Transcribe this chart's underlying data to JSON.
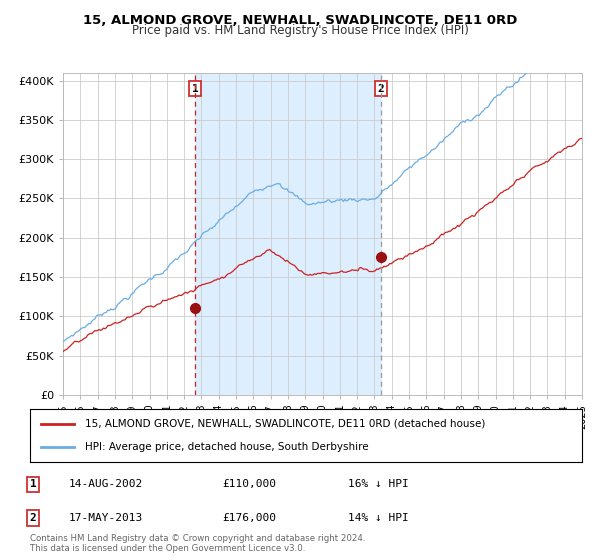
{
  "title": "15, ALMOND GROVE, NEWHALL, SWADLINCOTE, DE11 0RD",
  "subtitle": "Price paid vs. HM Land Registry's House Price Index (HPI)",
  "legend_line1": "15, ALMOND GROVE, NEWHALL, SWADLINCOTE, DE11 0RD (detached house)",
  "legend_line2": "HPI: Average price, detached house, South Derbyshire",
  "transaction1_date": "14-AUG-2002",
  "transaction1_price": "£110,000",
  "transaction1_hpi": "16% ↓ HPI",
  "transaction2_date": "17-MAY-2013",
  "transaction2_price": "£176,000",
  "transaction2_hpi": "14% ↓ HPI",
  "footer": "Contains HM Land Registry data © Crown copyright and database right 2024.\nThis data is licensed under the Open Government Licence v3.0.",
  "hpi_color": "#6aade4",
  "price_color": "#cc2222",
  "marker_color": "#991111",
  "shade_color": "#ddeeff",
  "vline1_color": "#cc2222",
  "vline2_color": "#999999",
  "background_color": "#ffffff",
  "grid_color": "#cccccc",
  "ylim": [
    0,
    410000
  ],
  "yticks": [
    0,
    50000,
    100000,
    150000,
    200000,
    250000,
    300000,
    350000,
    400000
  ],
  "xlim": [
    1995,
    2025
  ],
  "t1": 2002.625,
  "t2": 2013.375,
  "price_at_t1": 110000,
  "price_at_t2": 176000
}
